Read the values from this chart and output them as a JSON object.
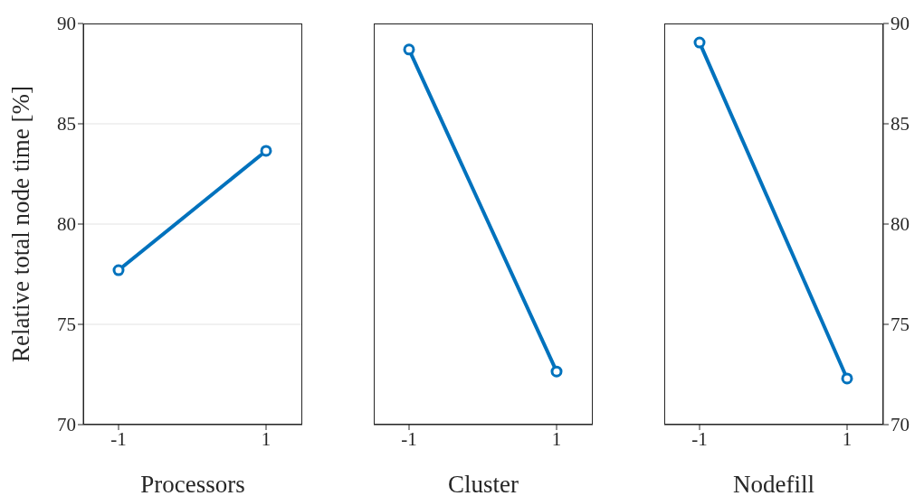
{
  "chart_data": [
    {
      "type": "line",
      "categories": [
        "-1",
        "1"
      ],
      "values": [
        77.7,
        83.65
      ],
      "color": "#0072bd",
      "xlabel": "Processors",
      "ylabel": "Relative total node time [%]",
      "ylim": [
        70,
        90
      ],
      "yticks": [
        70,
        75,
        80,
        85,
        90
      ],
      "grid": "y",
      "marker": "circle",
      "legend": false
    },
    {
      "type": "line",
      "categories": [
        "-1",
        "1"
      ],
      "values": [
        88.7,
        72.65
      ],
      "color": "#0072bd",
      "xlabel": "Cluster",
      "ylim": [
        70,
        90
      ],
      "yticks": [
        70,
        75,
        80,
        85,
        90
      ],
      "grid": "y",
      "marker": "circle",
      "legend": false,
      "tick_labels": "x"
    },
    {
      "type": "line",
      "categories": [
        "-1",
        "1"
      ],
      "series": [
        {
          "values": [
            89.05,
            72.3
          ],
          "color": "#0072bd",
          "axis": "y2"
        }
      ],
      "xlabel": "Nodefill",
      "y2lim": [
        70,
        90
      ],
      "y2ticks": [
        70,
        75,
        80,
        85,
        90
      ],
      "grid": "y",
      "marker": "circle",
      "legend": false
    }
  ]
}
